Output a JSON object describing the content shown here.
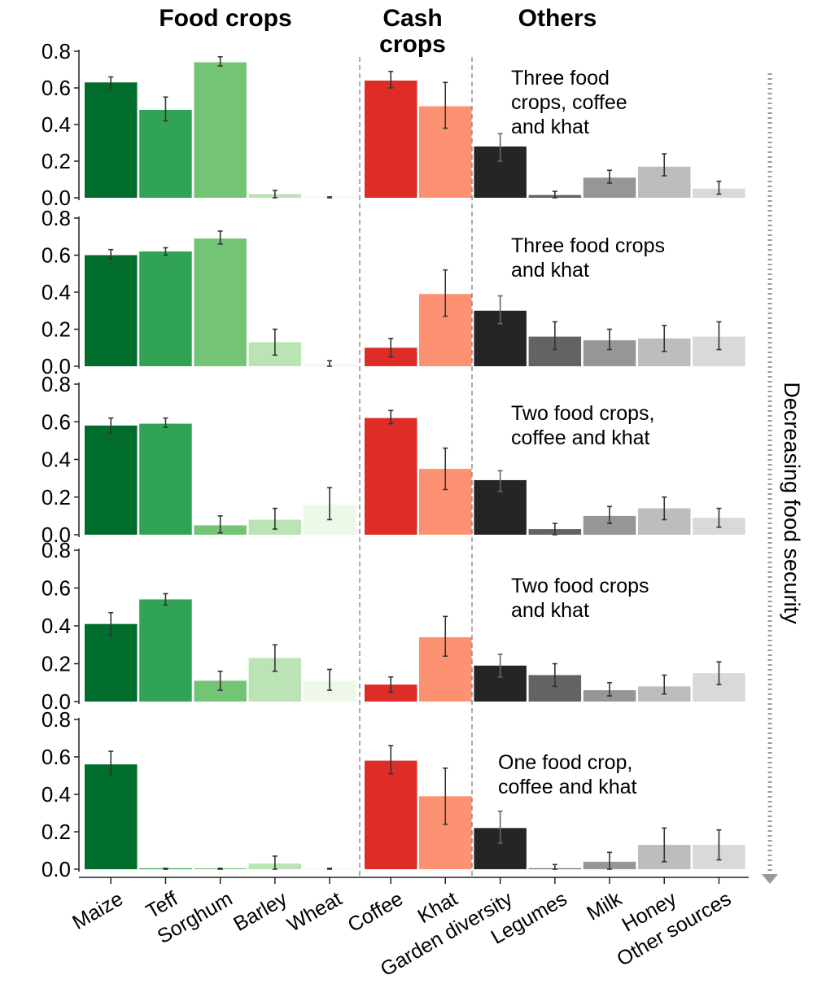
{
  "chart_data": {
    "type": "bar",
    "groups": [
      {
        "name": "Food crops",
        "categories": [
          "Maize",
          "Teff",
          "Sorghum",
          "Barley",
          "Wheat"
        ]
      },
      {
        "name": "Cash\ncrops",
        "categories": [
          "Coffee",
          "Khat"
        ]
      },
      {
        "name": "Others",
        "categories": [
          "Garden diversity",
          "Legumes",
          "Milk",
          "Honey",
          "Other sources"
        ]
      }
    ],
    "categories": [
      "Maize",
      "Teff",
      "Sorghum",
      "Barley",
      "Wheat",
      "Coffee",
      "Khat",
      "Garden diversity",
      "Legumes",
      "Milk",
      "Honey",
      "Other sources"
    ],
    "colors": [
      "#006d2c",
      "#31a354",
      "#74c476",
      "#bae4b3",
      "#edf8e9",
      "#de2d26",
      "#fc9272",
      "#252525",
      "#636363",
      "#969696",
      "#bdbdbd",
      "#d9d9d9"
    ],
    "ylim": [
      0,
      0.8
    ],
    "yticks": [
      "0.0",
      "0.2",
      "0.4",
      "0.6",
      "0.8"
    ],
    "side_label": "Decreasing food security",
    "panels": [
      {
        "label": "Three food\ncrops, coffee\nand khat",
        "values": [
          0.63,
          0.48,
          0.74,
          0.02,
          0.005,
          0.64,
          0.5,
          0.28,
          0.015,
          0.11,
          0.17,
          0.05
        ],
        "err_low": [
          0.6,
          0.42,
          0.72,
          0.0,
          0.0,
          0.6,
          0.38,
          0.2,
          0.0,
          0.08,
          0.12,
          0.02
        ],
        "err_high": [
          0.66,
          0.55,
          0.77,
          0.04,
          0.005,
          0.69,
          0.63,
          0.35,
          0.035,
          0.15,
          0.24,
          0.09
        ]
      },
      {
        "label": "Three food crops\nand khat",
        "values": [
          0.6,
          0.62,
          0.69,
          0.13,
          0.01,
          0.1,
          0.39,
          0.3,
          0.16,
          0.14,
          0.15,
          0.16
        ],
        "err_low": [
          0.58,
          0.6,
          0.66,
          0.06,
          0.0,
          0.05,
          0.27,
          0.23,
          0.09,
          0.09,
          0.08,
          0.09
        ],
        "err_high": [
          0.63,
          0.64,
          0.73,
          0.2,
          0.03,
          0.15,
          0.52,
          0.38,
          0.24,
          0.2,
          0.22,
          0.24
        ]
      },
      {
        "label": "Two food crops,\ncoffee and khat",
        "values": [
          0.58,
          0.59,
          0.05,
          0.08,
          0.16,
          0.62,
          0.35,
          0.29,
          0.03,
          0.1,
          0.14,
          0.09
        ],
        "err_low": [
          0.54,
          0.57,
          0.01,
          0.03,
          0.08,
          0.59,
          0.24,
          0.23,
          0.0,
          0.06,
          0.08,
          0.04
        ],
        "err_high": [
          0.62,
          0.62,
          0.1,
          0.14,
          0.25,
          0.66,
          0.46,
          0.34,
          0.06,
          0.15,
          0.2,
          0.14
        ]
      },
      {
        "label": "Two food crops\nand khat",
        "values": [
          0.41,
          0.54,
          0.11,
          0.23,
          0.11,
          0.09,
          0.34,
          0.19,
          0.14,
          0.06,
          0.08,
          0.15
        ],
        "err_low": [
          0.35,
          0.51,
          0.06,
          0.16,
          0.06,
          0.05,
          0.24,
          0.13,
          0.08,
          0.03,
          0.04,
          0.09
        ],
        "err_high": [
          0.47,
          0.57,
          0.16,
          0.3,
          0.17,
          0.13,
          0.45,
          0.25,
          0.2,
          0.1,
          0.14,
          0.21
        ]
      },
      {
        "label": "One food crop,\ncoffee and khat",
        "values": [
          0.56,
          0.005,
          0.005,
          0.03,
          0.005,
          0.58,
          0.39,
          0.22,
          0.005,
          0.04,
          0.13,
          0.13
        ],
        "err_low": [
          0.5,
          0.0,
          0.0,
          0.0,
          0.0,
          0.51,
          0.24,
          0.14,
          0.0,
          0.0,
          0.04,
          0.05
        ],
        "err_high": [
          0.63,
          0.005,
          0.005,
          0.07,
          0.005,
          0.66,
          0.54,
          0.31,
          0.025,
          0.09,
          0.22,
          0.21
        ]
      }
    ]
  }
}
